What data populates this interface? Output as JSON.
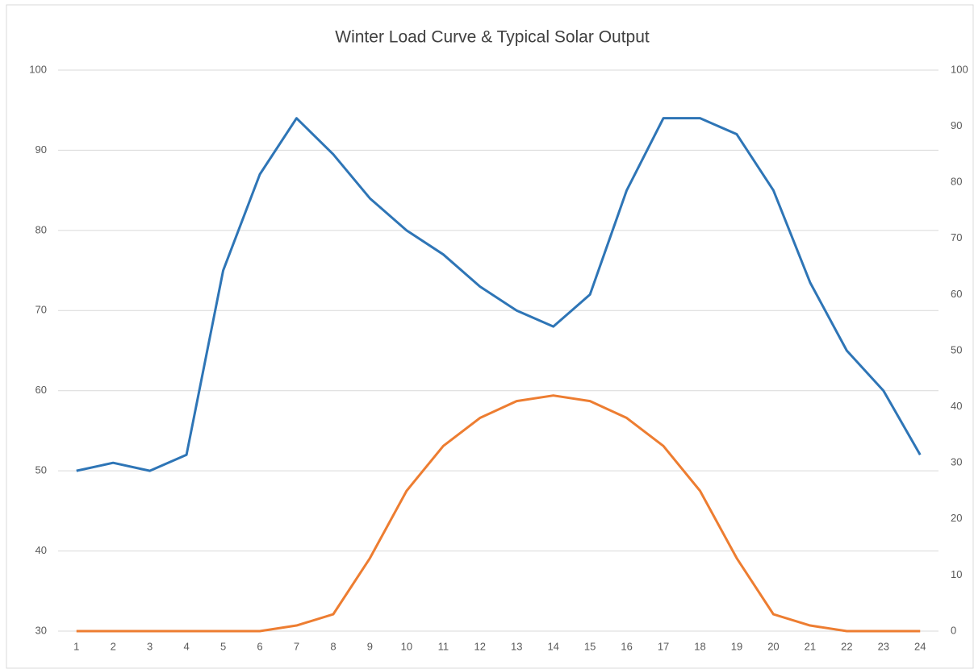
{
  "chart_data": {
    "type": "line",
    "title": "Winter Load Curve & Typical Solar Output",
    "categories": [
      "1",
      "2",
      "3",
      "4",
      "5",
      "6",
      "7",
      "8",
      "9",
      "10",
      "11",
      "12",
      "13",
      "14",
      "15",
      "16",
      "17",
      "18",
      "19",
      "20",
      "21",
      "22",
      "23",
      "24"
    ],
    "series": [
      {
        "color": "#2e75b6",
        "values": [
          50,
          51,
          50,
          52,
          75,
          87,
          94,
          89.5,
          84,
          80,
          77,
          73,
          70,
          68,
          72,
          85,
          94,
          94,
          92,
          85,
          73.5,
          65,
          60,
          52
        ]
      },
      {
        "color": "#ed7d31",
        "axis": "y2",
        "values": [
          0,
          0,
          0,
          0,
          0,
          0,
          1,
          3,
          13,
          25,
          33,
          38,
          41,
          42,
          41,
          38,
          33,
          25,
          13,
          3,
          1,
          0,
          0,
          0
        ]
      }
    ],
    "ylim": [
      30,
      100
    ],
    "yticks": [
      30,
      40,
      50,
      60,
      70,
      80,
      90,
      100
    ],
    "y2lim": [
      0,
      100
    ],
    "y2ticks": [
      0,
      10,
      20,
      30,
      40,
      50,
      60,
      70,
      80,
      90,
      100
    ],
    "grid": true
  }
}
